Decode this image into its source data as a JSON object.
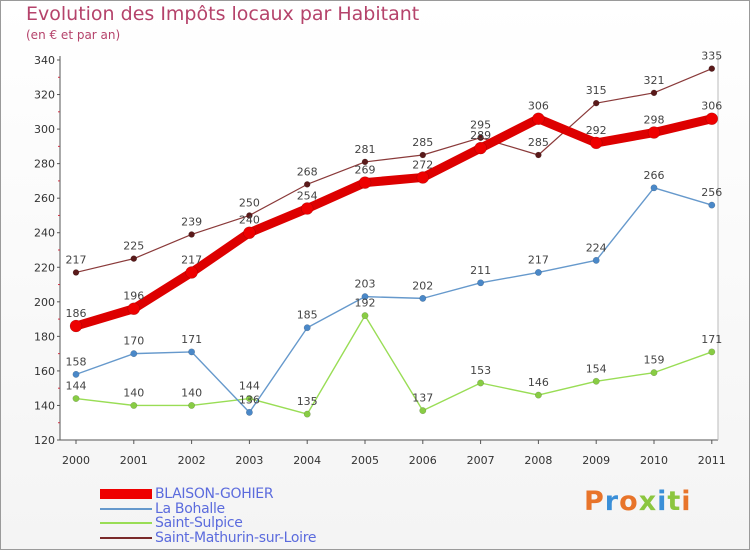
{
  "title": "Evolution des Impôts locaux par Habitant",
  "subtitle": "(en € et par an)",
  "brand": {
    "name": "Proxiti",
    "letters": [
      "P",
      "r",
      "o",
      "x",
      "i",
      "t",
      "i"
    ],
    "colors": [
      "#e8742a",
      "#3a8fd8",
      "#e8742a",
      "#8cc63f",
      "#3a8fd8",
      "#8cc63f",
      "#e8742a"
    ]
  },
  "chart_data": {
    "type": "line",
    "title": "Evolution des Impôts locaux par Habitant",
    "ylabel": "(en € et par an)",
    "xlabel": "",
    "ylim": [
      120,
      340
    ],
    "yticks": [
      120,
      140,
      160,
      180,
      200,
      220,
      240,
      260,
      280,
      300,
      320,
      340
    ],
    "x": [
      "2000",
      "2001",
      "2002",
      "2003",
      "2004",
      "2005",
      "2006",
      "2007",
      "2008",
      "2009",
      "2010",
      "2011"
    ],
    "series": [
      {
        "name": "Saint-Mathurin-sur-Loire",
        "color": "#7a2a2a",
        "values": [
          217,
          225,
          239,
          250,
          268,
          281,
          285,
          295,
          285,
          315,
          321,
          335
        ]
      },
      {
        "name": "Saint-Sulpice",
        "color": "#99dd55",
        "values": [
          144,
          140,
          140,
          144,
          135,
          192,
          137,
          153,
          146,
          154,
          159,
          171
        ]
      },
      {
        "name": "La Bohalle",
        "color": "#6699cc",
        "values": [
          158,
          170,
          171,
          136,
          185,
          203,
          202,
          211,
          217,
          224,
          266,
          256
        ]
      },
      {
        "name": "BLAISON-GOHIER",
        "color": "#ee0000",
        "values": [
          186,
          196,
          217,
          240,
          254,
          269,
          272,
          289,
          306,
          292,
          298,
          306
        ]
      }
    ],
    "legend": [
      "BLAISON-GOHIER",
      "La Bohalle",
      "Saint-Sulpice",
      "Saint-Mathurin-sur-Loire"
    ],
    "legend_placement": "bottom-left",
    "grid": false
  }
}
